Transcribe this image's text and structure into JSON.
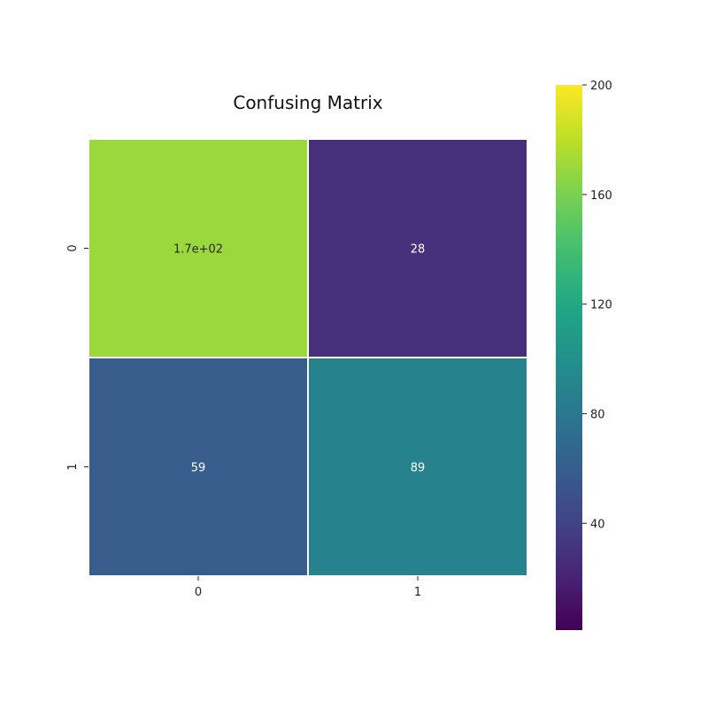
{
  "chart_data": {
    "type": "heatmap",
    "title": "Confusing Matrix",
    "x_categories": [
      "0",
      "1"
    ],
    "y_categories": [
      "0",
      "1"
    ],
    "values": [
      [
        170,
        28
      ],
      [
        59,
        89
      ]
    ],
    "cell_labels": [
      [
        "1.7e+02",
        "28"
      ],
      [
        "59",
        "89"
      ]
    ],
    "colormap": "viridis",
    "colorbar": {
      "vmin": 1,
      "vmax": 200,
      "ticks": [
        40,
        80,
        120,
        160,
        200
      ],
      "tick_labels": [
        "40",
        "80",
        "120",
        "160",
        "200"
      ]
    }
  }
}
